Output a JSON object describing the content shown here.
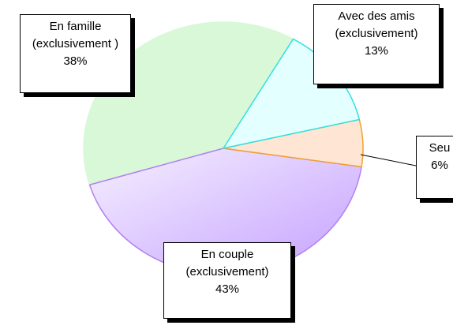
{
  "chart_data": {
    "type": "pie",
    "categories": [
      "Avec des amis\n(exclusivement)",
      "Seu",
      "En couple\n(exclusivement)",
      "En famille\n(exclusivement )"
    ],
    "values": [
      13,
      6,
      43,
      38
    ],
    "value_labels": [
      "13%",
      "6%",
      "43%",
      "38%"
    ],
    "colors": [
      "#e4ffff",
      "#ffe6d4",
      "#e2d2ff",
      "#d8f8d8"
    ],
    "edge_colors": [
      "#30e0e0",
      "#f0a030",
      "#b080f0",
      "#d8f8d8"
    ]
  }
}
